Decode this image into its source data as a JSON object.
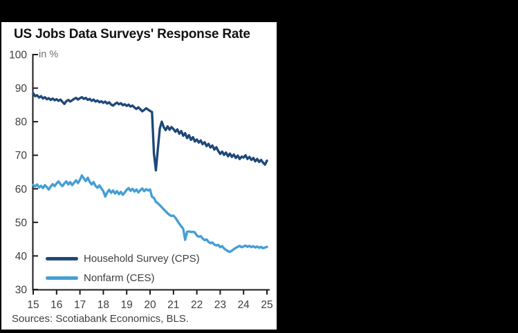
{
  "window": {
    "background_color": "#000000",
    "panel_color": "#ffffff"
  },
  "title": "US Jobs Data Surveys' Response Rate",
  "source": "Sources: Scotiabank Economics, BLS.",
  "colors": {
    "household_cps": "#1e4878",
    "nonfarm_ces": "#449ed6",
    "axis": "#1a1a1a",
    "tick_label": "#3d3d3d",
    "unit_label": "#6f6f6f"
  },
  "chart_data": {
    "type": "line",
    "title": "US Jobs Data Surveys' Response Rate",
    "unit_label": "in %",
    "xlabel": "",
    "ylabel": "in %",
    "grid": false,
    "legend_position": "inside-bottom-left",
    "ylim": [
      30,
      100
    ],
    "y_ticks": [
      30,
      40,
      50,
      60,
      70,
      80,
      90,
      100
    ],
    "x_start_year": 2015,
    "x_tick_labels": [
      "15",
      "16",
      "17",
      "18",
      "19",
      "20",
      "21",
      "22",
      "23",
      "24",
      "25"
    ],
    "x_frequency": "monthly",
    "series": [
      {
        "name": "Household Survey (CPS)",
        "color": "#1e4878",
        "start": "2015-01",
        "values": [
          88.5,
          87.6,
          87.9,
          87.2,
          87.6,
          86.9,
          87.3,
          86.7,
          87.0,
          86.5,
          86.9,
          86.4,
          86.7,
          86.2,
          86.6,
          85.9,
          85.3,
          86.1,
          86.5,
          86.0,
          86.4,
          86.8,
          87.1,
          86.6,
          87.0,
          87.3,
          86.8,
          87.1,
          86.5,
          86.8,
          86.2,
          86.6,
          86.0,
          86.3,
          85.8,
          86.1,
          85.6,
          86.0,
          85.4,
          85.8,
          85.1,
          84.8,
          85.3,
          85.7,
          85.2,
          85.5,
          84.9,
          85.2,
          84.7,
          85.1,
          84.5,
          84.8,
          84.2,
          83.8,
          84.3,
          83.7,
          83.1,
          83.5,
          84.0,
          83.6,
          83.2,
          82.9,
          70.5,
          65.5,
          72.0,
          78.0,
          80.0,
          78.4,
          77.5,
          78.6,
          77.6,
          78.4,
          77.8,
          77.0,
          77.7,
          76.4,
          77.2,
          75.8,
          76.6,
          75.1,
          76.0,
          74.6,
          75.4,
          74.1,
          74.7,
          73.8,
          74.4,
          73.3,
          73.9,
          72.7,
          73.4,
          72.3,
          72.9,
          71.7,
          72.4,
          71.3,
          70.4,
          71.1,
          70.1,
          70.8,
          69.7,
          70.5,
          69.5,
          70.2,
          69.2,
          69.9,
          68.9,
          69.6,
          69.3,
          70.0,
          68.9,
          69.5,
          68.6,
          69.2,
          68.2,
          68.9,
          68.0,
          68.6,
          67.8,
          67.2,
          68.4
        ]
      },
      {
        "name": "Nonfarm (CES)",
        "color": "#449ed6",
        "start": "2015-01",
        "values": [
          61.2,
          60.7,
          61.3,
          60.4,
          60.9,
          60.2,
          61.1,
          60.5,
          59.8,
          60.7,
          61.4,
          60.8,
          61.6,
          62.2,
          61.4,
          60.8,
          61.6,
          62.2,
          61.3,
          62.0,
          61.1,
          61.8,
          62.5,
          61.7,
          62.7,
          64.0,
          63.1,
          62.3,
          63.3,
          62.1,
          61.3,
          62.0,
          60.9,
          60.3,
          61.0,
          60.1,
          59.3,
          57.7,
          58.9,
          59.7,
          58.8,
          59.5,
          58.6,
          59.3,
          58.4,
          59.1,
          58.2,
          58.9,
          59.7,
          60.2,
          59.4,
          60.0,
          59.2,
          59.8,
          58.9,
          59.6,
          60.1,
          59.3,
          59.9,
          59.5,
          59.8,
          57.6,
          57.3,
          56.1,
          55.7,
          55.1,
          54.5,
          53.9,
          53.3,
          52.7,
          52.2,
          51.9,
          52.0,
          51.4,
          50.5,
          49.6,
          48.8,
          48.1,
          44.8,
          47.2,
          47.3,
          47.1,
          47.2,
          47.0,
          46.1,
          45.7,
          45.9,
          45.2,
          44.7,
          44.9,
          44.2,
          43.8,
          44.0,
          43.4,
          43.1,
          43.3,
          42.6,
          42.9,
          42.2,
          41.8,
          41.4,
          41.2,
          41.6,
          42.0,
          42.4,
          42.7,
          43.0,
          42.6,
          42.8,
          43.1,
          42.7,
          43.0,
          42.6,
          42.9,
          42.5,
          42.8,
          42.4,
          42.7,
          42.3,
          42.5,
          42.7
        ]
      }
    ]
  }
}
